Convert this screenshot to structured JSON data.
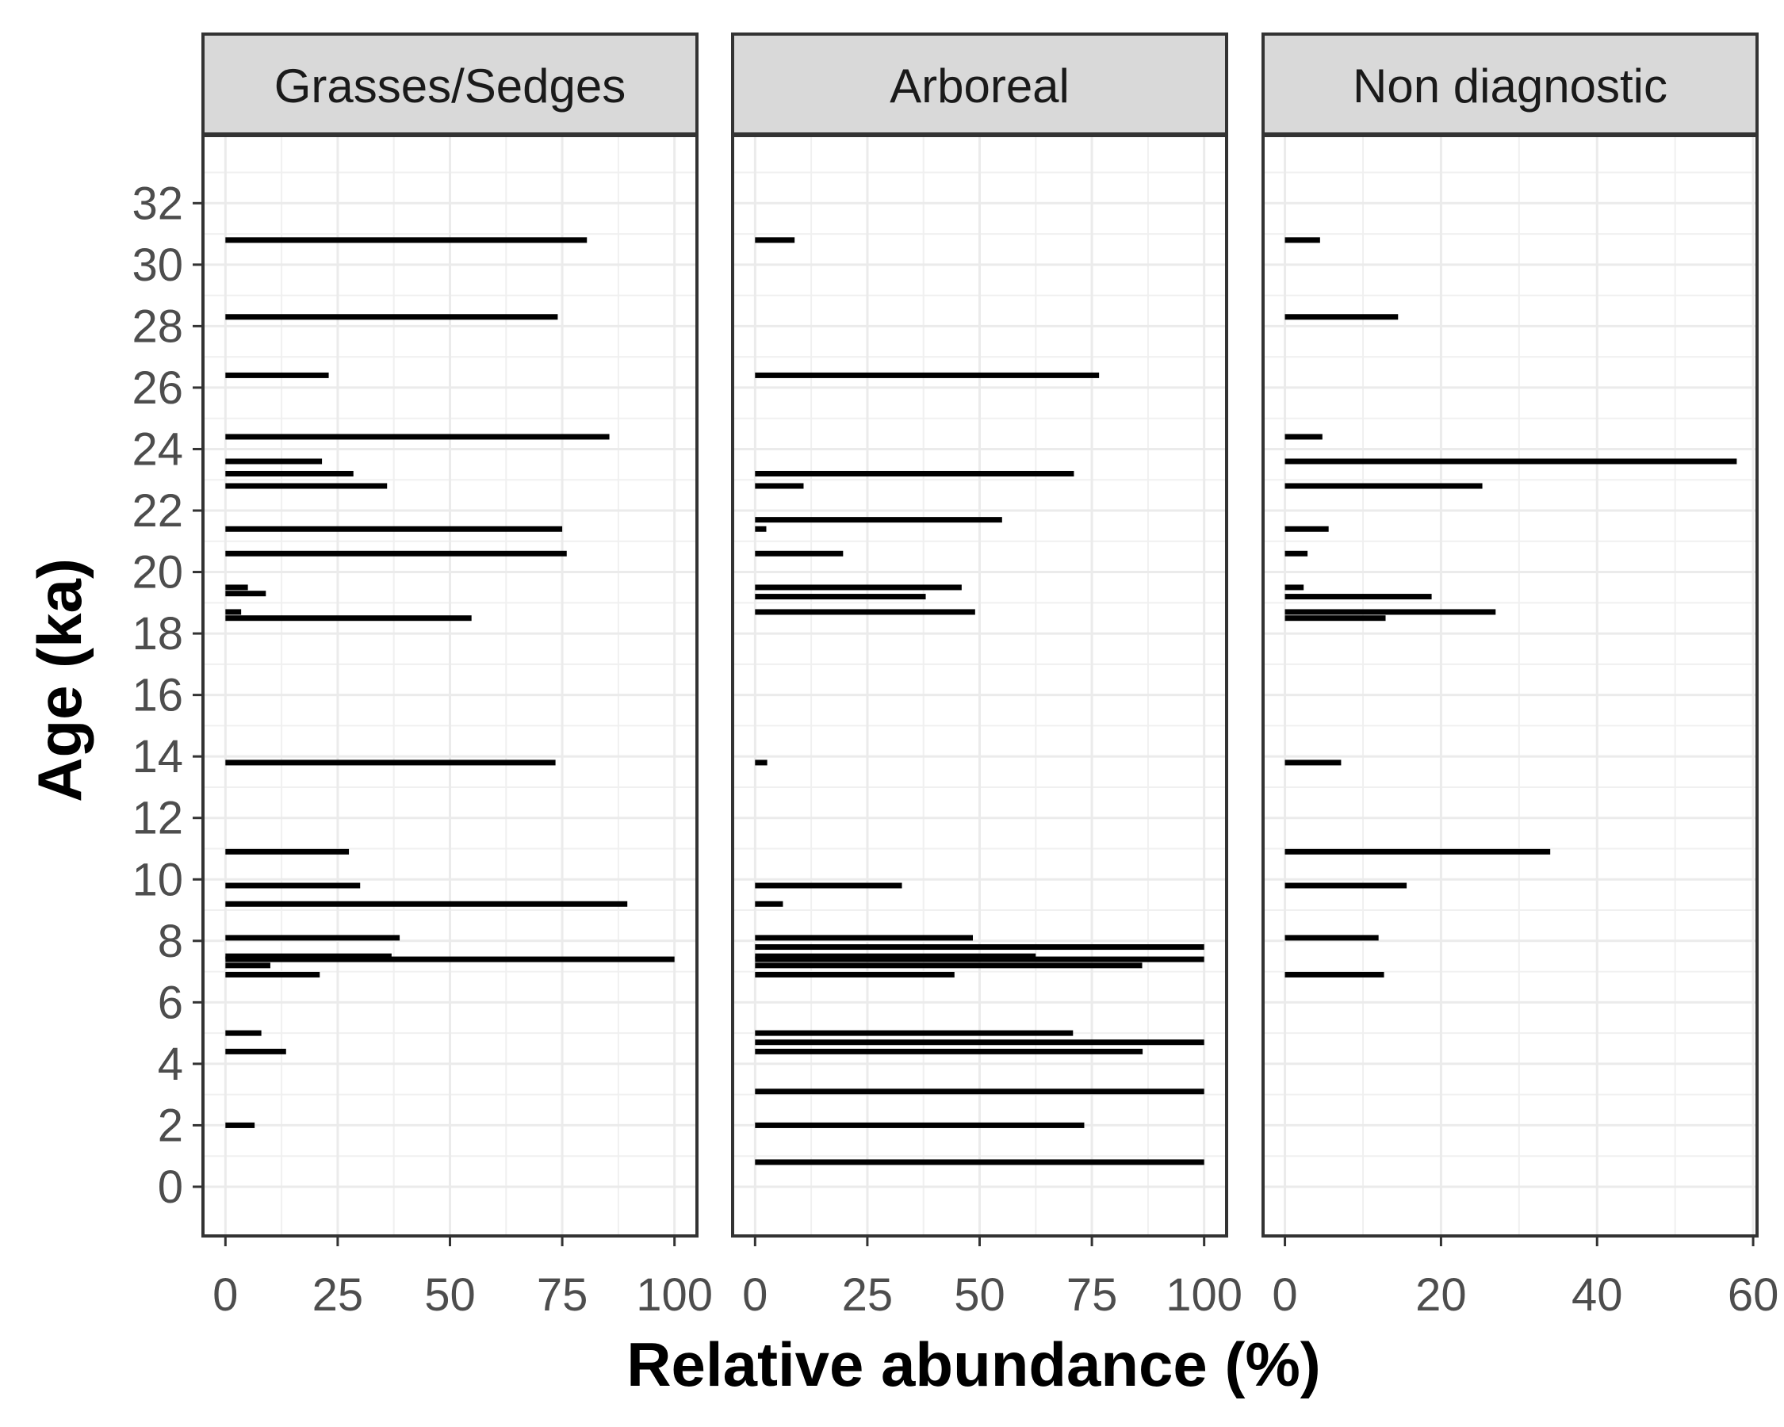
{
  "chart_data": {
    "type": "bar",
    "orientation": "horizontal",
    "xlabel": "Relative abundance (%)",
    "ylabel": "Age (ka)",
    "ylim": [
      34.2,
      -1.6
    ],
    "y_ticks": [
      0,
      2,
      4,
      6,
      8,
      10,
      12,
      14,
      16,
      18,
      20,
      22,
      24,
      26,
      28,
      30,
      32
    ],
    "grid": true,
    "panels": [
      {
        "name": "Grasses/Sedges",
        "xlim": [
          -5,
          105
        ],
        "x_ticks": [
          0,
          25,
          50,
          75,
          100
        ],
        "points": [
          {
            "age": 2.0,
            "value": 6.5
          },
          {
            "age": 4.4,
            "value": 13.5
          },
          {
            "age": 5.0,
            "value": 8.0
          },
          {
            "age": 6.9,
            "value": 21.0
          },
          {
            "age": 7.2,
            "value": 10.0
          },
          {
            "age": 7.4,
            "value": 100.0
          },
          {
            "age": 7.5,
            "value": 37.0
          },
          {
            "age": 8.1,
            "value": 38.8
          },
          {
            "age": 9.2,
            "value": 89.5
          },
          {
            "age": 9.8,
            "value": 30.0
          },
          {
            "age": 10.9,
            "value": 27.5
          },
          {
            "age": 13.8,
            "value": 73.5
          },
          {
            "age": 18.5,
            "value": 54.8
          },
          {
            "age": 18.7,
            "value": 3.5
          },
          {
            "age": 19.3,
            "value": 9.0
          },
          {
            "age": 19.5,
            "value": 5.0
          },
          {
            "age": 20.6,
            "value": 76.0
          },
          {
            "age": 21.4,
            "value": 75.0
          },
          {
            "age": 22.8,
            "value": 36.0
          },
          {
            "age": 23.2,
            "value": 28.5
          },
          {
            "age": 23.6,
            "value": 21.5
          },
          {
            "age": 24.4,
            "value": 85.5
          },
          {
            "age": 26.4,
            "value": 23.0
          },
          {
            "age": 28.3,
            "value": 74.0
          },
          {
            "age": 30.8,
            "value": 80.5
          }
        ]
      },
      {
        "name": "Arboreal",
        "xlim": [
          -5,
          105
        ],
        "x_ticks": [
          0,
          25,
          50,
          75,
          100
        ],
        "points": [
          {
            "age": 0.8,
            "value": 100.0
          },
          {
            "age": 2.0,
            "value": 73.3
          },
          {
            "age": 3.1,
            "value": 100.0
          },
          {
            "age": 4.4,
            "value": 86.3
          },
          {
            "age": 4.7,
            "value": 100.0
          },
          {
            "age": 5.0,
            "value": 70.8
          },
          {
            "age": 6.9,
            "value": 44.4
          },
          {
            "age": 7.2,
            "value": 86.2
          },
          {
            "age": 7.4,
            "value": 100.0
          },
          {
            "age": 7.5,
            "value": 62.5
          },
          {
            "age": 7.8,
            "value": 100.0
          },
          {
            "age": 8.1,
            "value": 48.5
          },
          {
            "age": 9.2,
            "value": 6.2
          },
          {
            "age": 9.8,
            "value": 32.7
          },
          {
            "age": 13.8,
            "value": 2.7
          },
          {
            "age": 18.7,
            "value": 49.0
          },
          {
            "age": 19.2,
            "value": 38.0
          },
          {
            "age": 19.5,
            "value": 46.0
          },
          {
            "age": 20.6,
            "value": 19.6
          },
          {
            "age": 21.4,
            "value": 2.5
          },
          {
            "age": 21.7,
            "value": 55.0
          },
          {
            "age": 22.8,
            "value": 10.8
          },
          {
            "age": 23.2,
            "value": 71.0
          },
          {
            "age": 26.4,
            "value": 76.6
          },
          {
            "age": 30.8,
            "value": 8.8
          }
        ]
      },
      {
        "name": "Non diagnostic",
        "xlim": [
          -2.8,
          60.5
        ],
        "x_ticks": [
          0,
          20,
          40,
          60
        ],
        "points": [
          {
            "age": 6.9,
            "value": 12.7
          },
          {
            "age": 8.1,
            "value": 12.0
          },
          {
            "age": 9.8,
            "value": 15.6
          },
          {
            "age": 10.9,
            "value": 34.0
          },
          {
            "age": 13.8,
            "value": 7.2
          },
          {
            "age": 18.5,
            "value": 12.9
          },
          {
            "age": 18.7,
            "value": 27.0
          },
          {
            "age": 19.2,
            "value": 18.8
          },
          {
            "age": 19.5,
            "value": 2.4
          },
          {
            "age": 20.6,
            "value": 2.9
          },
          {
            "age": 21.4,
            "value": 5.6
          },
          {
            "age": 22.8,
            "value": 25.3
          },
          {
            "age": 23.6,
            "value": 57.9
          },
          {
            "age": 24.4,
            "value": 4.8
          },
          {
            "age": 28.3,
            "value": 14.5
          },
          {
            "age": 30.8,
            "value": 4.5
          }
        ]
      }
    ]
  }
}
